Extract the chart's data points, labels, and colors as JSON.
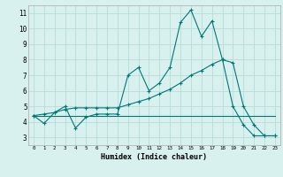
{
  "xlabel": "Humidex (Indice chaleur)",
  "background_color": "#d8f0ee",
  "grid_color": "#b8dcd8",
  "line_color": "#007878",
  "xlim": [
    -0.5,
    23.5
  ],
  "ylim": [
    2.5,
    11.5
  ],
  "xticks": [
    0,
    1,
    2,
    3,
    4,
    5,
    6,
    7,
    8,
    9,
    10,
    11,
    12,
    13,
    14,
    15,
    16,
    17,
    18,
    19,
    20,
    21,
    22,
    23
  ],
  "yticks": [
    3,
    4,
    5,
    6,
    7,
    8,
    9,
    10,
    11
  ],
  "series1_x": [
    0,
    1,
    2,
    3,
    4,
    5,
    6,
    7,
    8,
    9,
    10,
    11,
    12,
    13,
    14,
    15,
    16,
    17,
    18,
    19,
    20,
    21,
    22,
    23
  ],
  "series1_y": [
    4.4,
    3.9,
    4.6,
    5.0,
    3.6,
    4.3,
    4.5,
    4.5,
    4.5,
    7.0,
    7.5,
    6.0,
    6.5,
    7.5,
    10.4,
    11.2,
    9.5,
    10.5,
    8.0,
    5.0,
    3.8,
    3.1,
    3.1,
    3.1
  ],
  "series2_x": [
    0,
    1,
    2,
    3,
    4,
    5,
    6,
    7,
    8,
    9,
    10,
    11,
    12,
    13,
    14,
    15,
    16,
    17,
    18,
    19,
    20,
    21,
    22,
    23
  ],
  "series2_y": [
    4.4,
    4.5,
    4.6,
    4.8,
    4.9,
    4.9,
    4.9,
    4.9,
    4.9,
    5.1,
    5.3,
    5.5,
    5.8,
    6.1,
    6.5,
    7.0,
    7.3,
    7.7,
    8.0,
    7.8,
    5.0,
    3.8,
    3.1,
    3.1
  ],
  "series3_x": [
    0,
    23
  ],
  "series3_y": [
    4.4,
    4.4
  ]
}
